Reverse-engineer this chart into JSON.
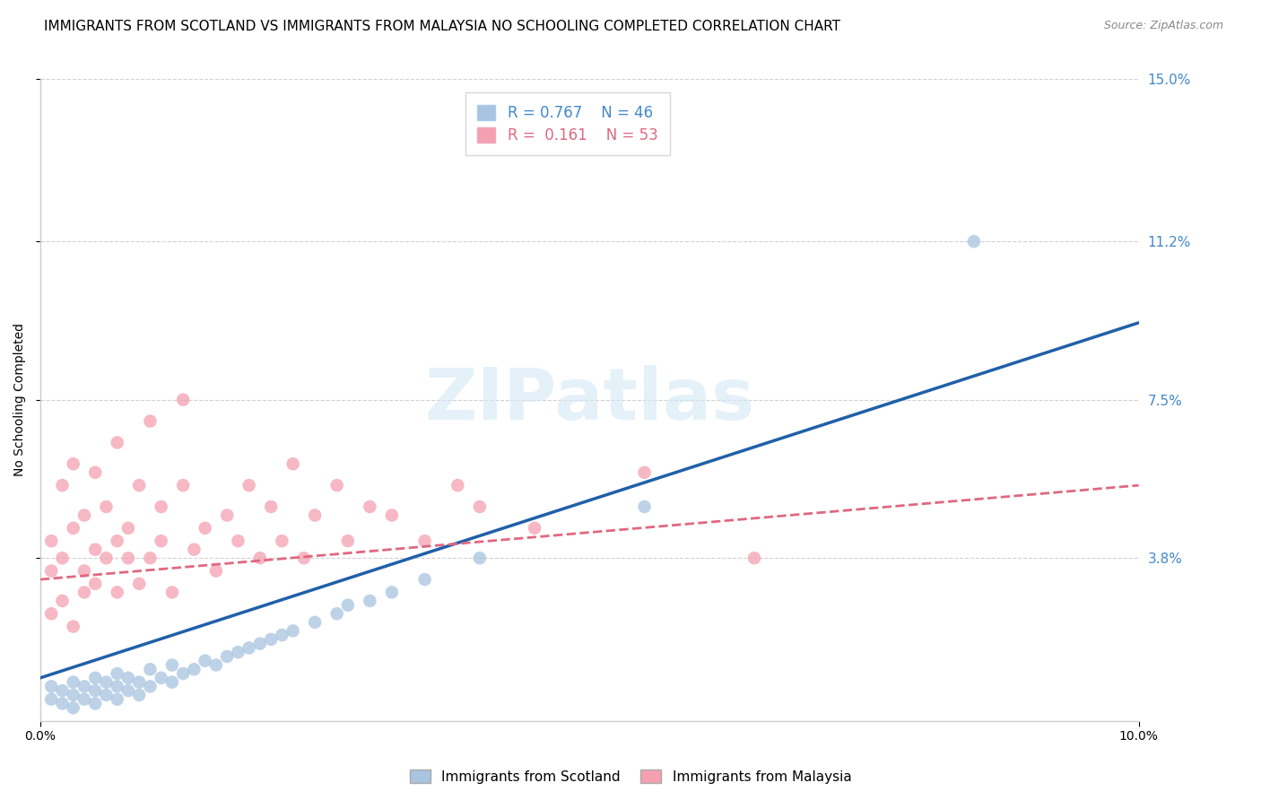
{
  "title": "IMMIGRANTS FROM SCOTLAND VS IMMIGRANTS FROM MALAYSIA NO SCHOOLING COMPLETED CORRELATION CHART",
  "source": "Source: ZipAtlas.com",
  "ylabel": "No Schooling Completed",
  "xlim": [
    0.0,
    0.1
  ],
  "ylim": [
    0.0,
    0.15
  ],
  "xticks": [
    0.0,
    0.1
  ],
  "xticklabels": [
    "0.0%",
    "10.0%"
  ],
  "yticks": [
    0.038,
    0.075,
    0.112,
    0.15
  ],
  "yticklabels": [
    "3.8%",
    "7.5%",
    "11.2%",
    "15.0%"
  ],
  "scotland_color": "#a8c4e0",
  "malaysia_color": "#f4a0b0",
  "scotland_R": 0.767,
  "scotland_N": 46,
  "malaysia_R": 0.161,
  "malaysia_N": 53,
  "scotland_line_color": "#2060a8",
  "malaysia_line_color": "#e06880",
  "watermark_text": "ZIPatlas",
  "background_color": "#ffffff",
  "grid_color": "#cccccc",
  "scotland_x": [
    0.001,
    0.001,
    0.002,
    0.002,
    0.003,
    0.003,
    0.003,
    0.004,
    0.004,
    0.005,
    0.005,
    0.005,
    0.006,
    0.006,
    0.007,
    0.007,
    0.007,
    0.008,
    0.008,
    0.009,
    0.009,
    0.01,
    0.01,
    0.011,
    0.012,
    0.012,
    0.013,
    0.014,
    0.015,
    0.016,
    0.017,
    0.018,
    0.019,
    0.02,
    0.021,
    0.022,
    0.023,
    0.025,
    0.027,
    0.028,
    0.03,
    0.032,
    0.035,
    0.04,
    0.055,
    0.085
  ],
  "scotland_y": [
    0.005,
    0.008,
    0.004,
    0.007,
    0.003,
    0.006,
    0.009,
    0.005,
    0.008,
    0.004,
    0.007,
    0.01,
    0.006,
    0.009,
    0.005,
    0.008,
    0.011,
    0.007,
    0.01,
    0.006,
    0.009,
    0.008,
    0.012,
    0.01,
    0.009,
    0.013,
    0.011,
    0.012,
    0.014,
    0.013,
    0.015,
    0.016,
    0.017,
    0.018,
    0.019,
    0.02,
    0.021,
    0.023,
    0.025,
    0.027,
    0.028,
    0.03,
    0.033,
    0.038,
    0.05,
    0.112
  ],
  "malaysia_x": [
    0.001,
    0.001,
    0.001,
    0.002,
    0.002,
    0.002,
    0.003,
    0.003,
    0.003,
    0.004,
    0.004,
    0.004,
    0.005,
    0.005,
    0.005,
    0.006,
    0.006,
    0.007,
    0.007,
    0.007,
    0.008,
    0.008,
    0.009,
    0.009,
    0.01,
    0.01,
    0.011,
    0.011,
    0.012,
    0.013,
    0.013,
    0.014,
    0.015,
    0.016,
    0.017,
    0.018,
    0.019,
    0.02,
    0.021,
    0.022,
    0.023,
    0.024,
    0.025,
    0.027,
    0.028,
    0.03,
    0.032,
    0.035,
    0.038,
    0.04,
    0.045,
    0.055,
    0.065
  ],
  "malaysia_y": [
    0.025,
    0.035,
    0.042,
    0.028,
    0.038,
    0.055,
    0.022,
    0.045,
    0.06,
    0.03,
    0.048,
    0.035,
    0.04,
    0.058,
    0.032,
    0.038,
    0.05,
    0.042,
    0.03,
    0.065,
    0.038,
    0.045,
    0.055,
    0.032,
    0.038,
    0.07,
    0.042,
    0.05,
    0.03,
    0.055,
    0.075,
    0.04,
    0.045,
    0.035,
    0.048,
    0.042,
    0.055,
    0.038,
    0.05,
    0.042,
    0.06,
    0.038,
    0.048,
    0.055,
    0.042,
    0.05,
    0.048,
    0.042,
    0.055,
    0.05,
    0.045,
    0.058,
    0.038
  ],
  "scotland_line_x0": 0.0,
  "scotland_line_y0": 0.01,
  "scotland_line_x1": 0.1,
  "scotland_line_y1": 0.093,
  "malaysia_line_x0": 0.0,
  "malaysia_line_y0": 0.033,
  "malaysia_line_x1": 0.1,
  "malaysia_line_y1": 0.055,
  "title_fontsize": 11,
  "axis_label_fontsize": 10,
  "tick_fontsize": 10,
  "right_tick_color": "#4488cc",
  "legend_label_color_scotland": "#4488cc",
  "legend_label_color_malaysia": "#e06880"
}
